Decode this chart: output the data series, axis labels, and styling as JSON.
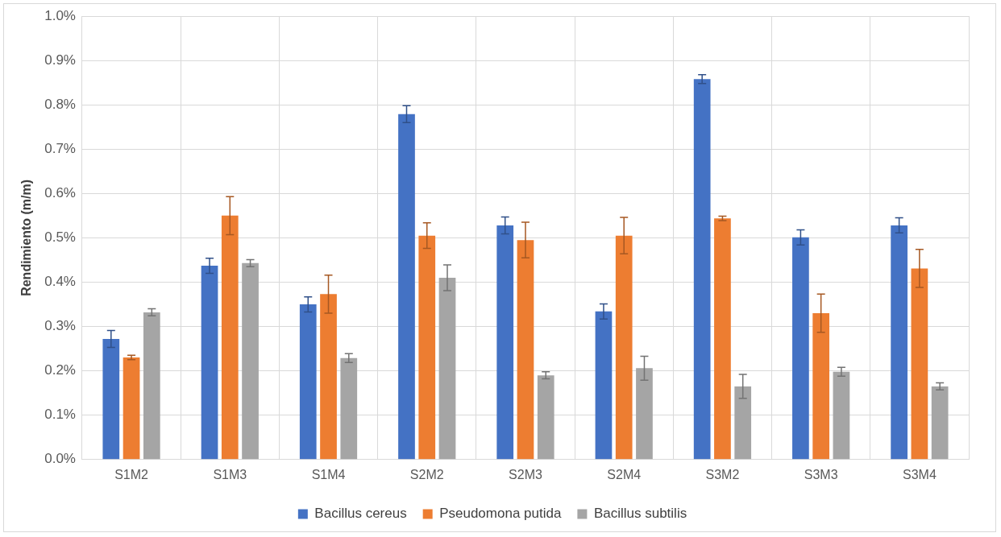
{
  "chart_data": {
    "type": "bar",
    "ylabel": "Rendimiento (m/m)",
    "categories": [
      "S1M2",
      "S1M3",
      "S1M4",
      "S2M2",
      "S2M3",
      "S2M4",
      "S3M2",
      "S3M3",
      "S3M4"
    ],
    "series": [
      {
        "name": "Bacillus cereus",
        "color": "#4472c4",
        "values": [
          0.272,
          0.437,
          0.35,
          0.779,
          0.528,
          0.334,
          0.858,
          0.501,
          0.528
        ],
        "errors": [
          0.019,
          0.017,
          0.017,
          0.019,
          0.019,
          0.017,
          0.01,
          0.017,
          0.017
        ]
      },
      {
        "name": "Pseudomona putida",
        "color": "#ed7d31",
        "values": [
          0.23,
          0.55,
          0.373,
          0.505,
          0.495,
          0.505,
          0.544,
          0.33,
          0.431
        ],
        "errors": [
          0.005,
          0.043,
          0.043,
          0.029,
          0.04,
          0.041,
          0.005,
          0.043,
          0.043
        ]
      },
      {
        "name": "Bacillus subtilis",
        "color": "#a5a5a5",
        "values": [
          0.332,
          0.443,
          0.229,
          0.41,
          0.19,
          0.206,
          0.165,
          0.198,
          0.165
        ],
        "errors": [
          0.008,
          0.008,
          0.01,
          0.029,
          0.008,
          0.027,
          0.027,
          0.01,
          0.008
        ]
      }
    ],
    "ylim": [
      0,
      1
    ],
    "yticks": [
      {
        "value": 0,
        "label": "0.0%"
      },
      {
        "value": 0.1,
        "label": "0.1%"
      },
      {
        "value": 0.2,
        "label": "0.2%"
      },
      {
        "value": 0.3,
        "label": "0.3%"
      },
      {
        "value": 0.4,
        "label": "0.4%"
      },
      {
        "value": 0.5,
        "label": "0.5%"
      },
      {
        "value": 0.6,
        "label": "0.6%"
      },
      {
        "value": 0.7,
        "label": "0.7%"
      },
      {
        "value": 0.8,
        "label": "0.8%"
      },
      {
        "value": 0.9,
        "label": "0.9%"
      },
      {
        "value": 1,
        "label": "1.0%"
      }
    ],
    "grid": true,
    "legend": "bottom"
  }
}
